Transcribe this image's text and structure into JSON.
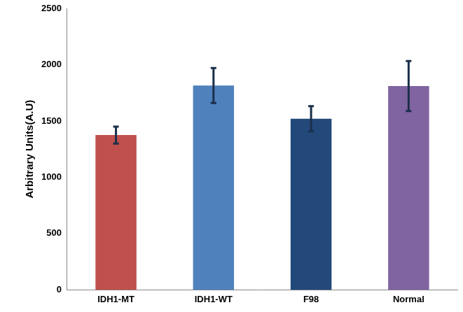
{
  "chart_data": {
    "type": "bar",
    "y_label": "Arbitrary Units(A.U)",
    "categories": [
      "IDH1-MT",
      "IDH1-WT",
      "F98",
      "Normal"
    ],
    "values": [
      1375,
      1815,
      1520,
      1810
    ],
    "errors": [
      75,
      155,
      112,
      222
    ],
    "colors": [
      "#c0504d",
      "#4f81bd",
      "#23487a",
      "#8064a2"
    ],
    "ylim": [
      0,
      2500
    ],
    "yticks": [
      0,
      500,
      1000,
      1500,
      2000,
      2500
    ],
    "grid": false
  }
}
